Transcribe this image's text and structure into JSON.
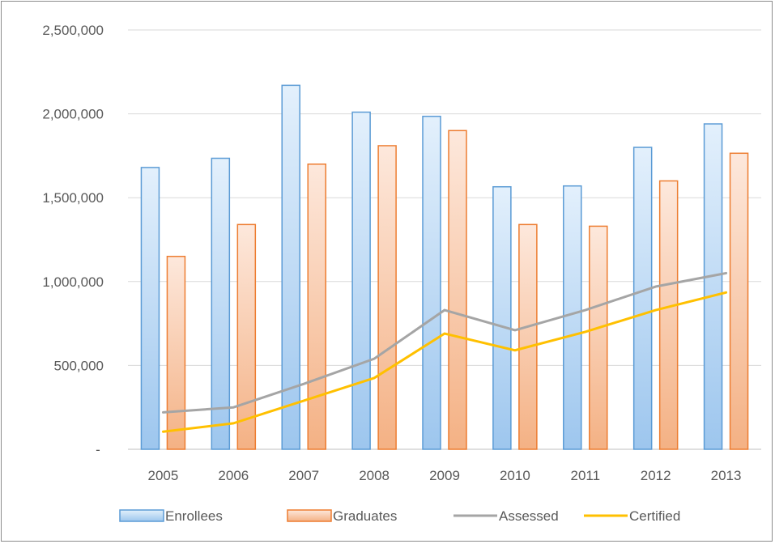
{
  "chart_data": {
    "type": "bar",
    "categories": [
      "2005",
      "2006",
      "2007",
      "2008",
      "2009",
      "2010",
      "2011",
      "2012",
      "2013"
    ],
    "series": [
      {
        "name": "Enrollees",
        "kind": "bar",
        "color": "#5b9bd5",
        "values": [
          1680000,
          1735000,
          2170000,
          2010000,
          1985000,
          1565000,
          1570000,
          1800000,
          1940000
        ]
      },
      {
        "name": "Graduates",
        "kind": "bar",
        "color": "#ed7d31",
        "values": [
          1150000,
          1340000,
          1700000,
          1810000,
          1900000,
          1340000,
          1330000,
          1600000,
          1765000
        ]
      },
      {
        "name": "Assessed",
        "kind": "line",
        "color": "#a5a5a5",
        "values": [
          220000,
          250000,
          390000,
          540000,
          830000,
          710000,
          830000,
          970000,
          1050000
        ]
      },
      {
        "name": "Certified",
        "kind": "line",
        "color": "#ffc000",
        "values": [
          105000,
          155000,
          290000,
          425000,
          690000,
          590000,
          700000,
          830000,
          935000
        ]
      }
    ],
    "y_ticks": [
      {
        "value": 0,
        "label": "-"
      },
      {
        "value": 500000,
        "label": "500,000"
      },
      {
        "value": 1000000,
        "label": "1,000,000"
      },
      {
        "value": 1500000,
        "label": "1,500,000"
      },
      {
        "value": 2000000,
        "label": "2,000,000"
      },
      {
        "value": 2500000,
        "label": "2,500,000"
      }
    ],
    "ylim": [
      0,
      2500000
    ],
    "grid": true,
    "legend_position": "bottom"
  }
}
